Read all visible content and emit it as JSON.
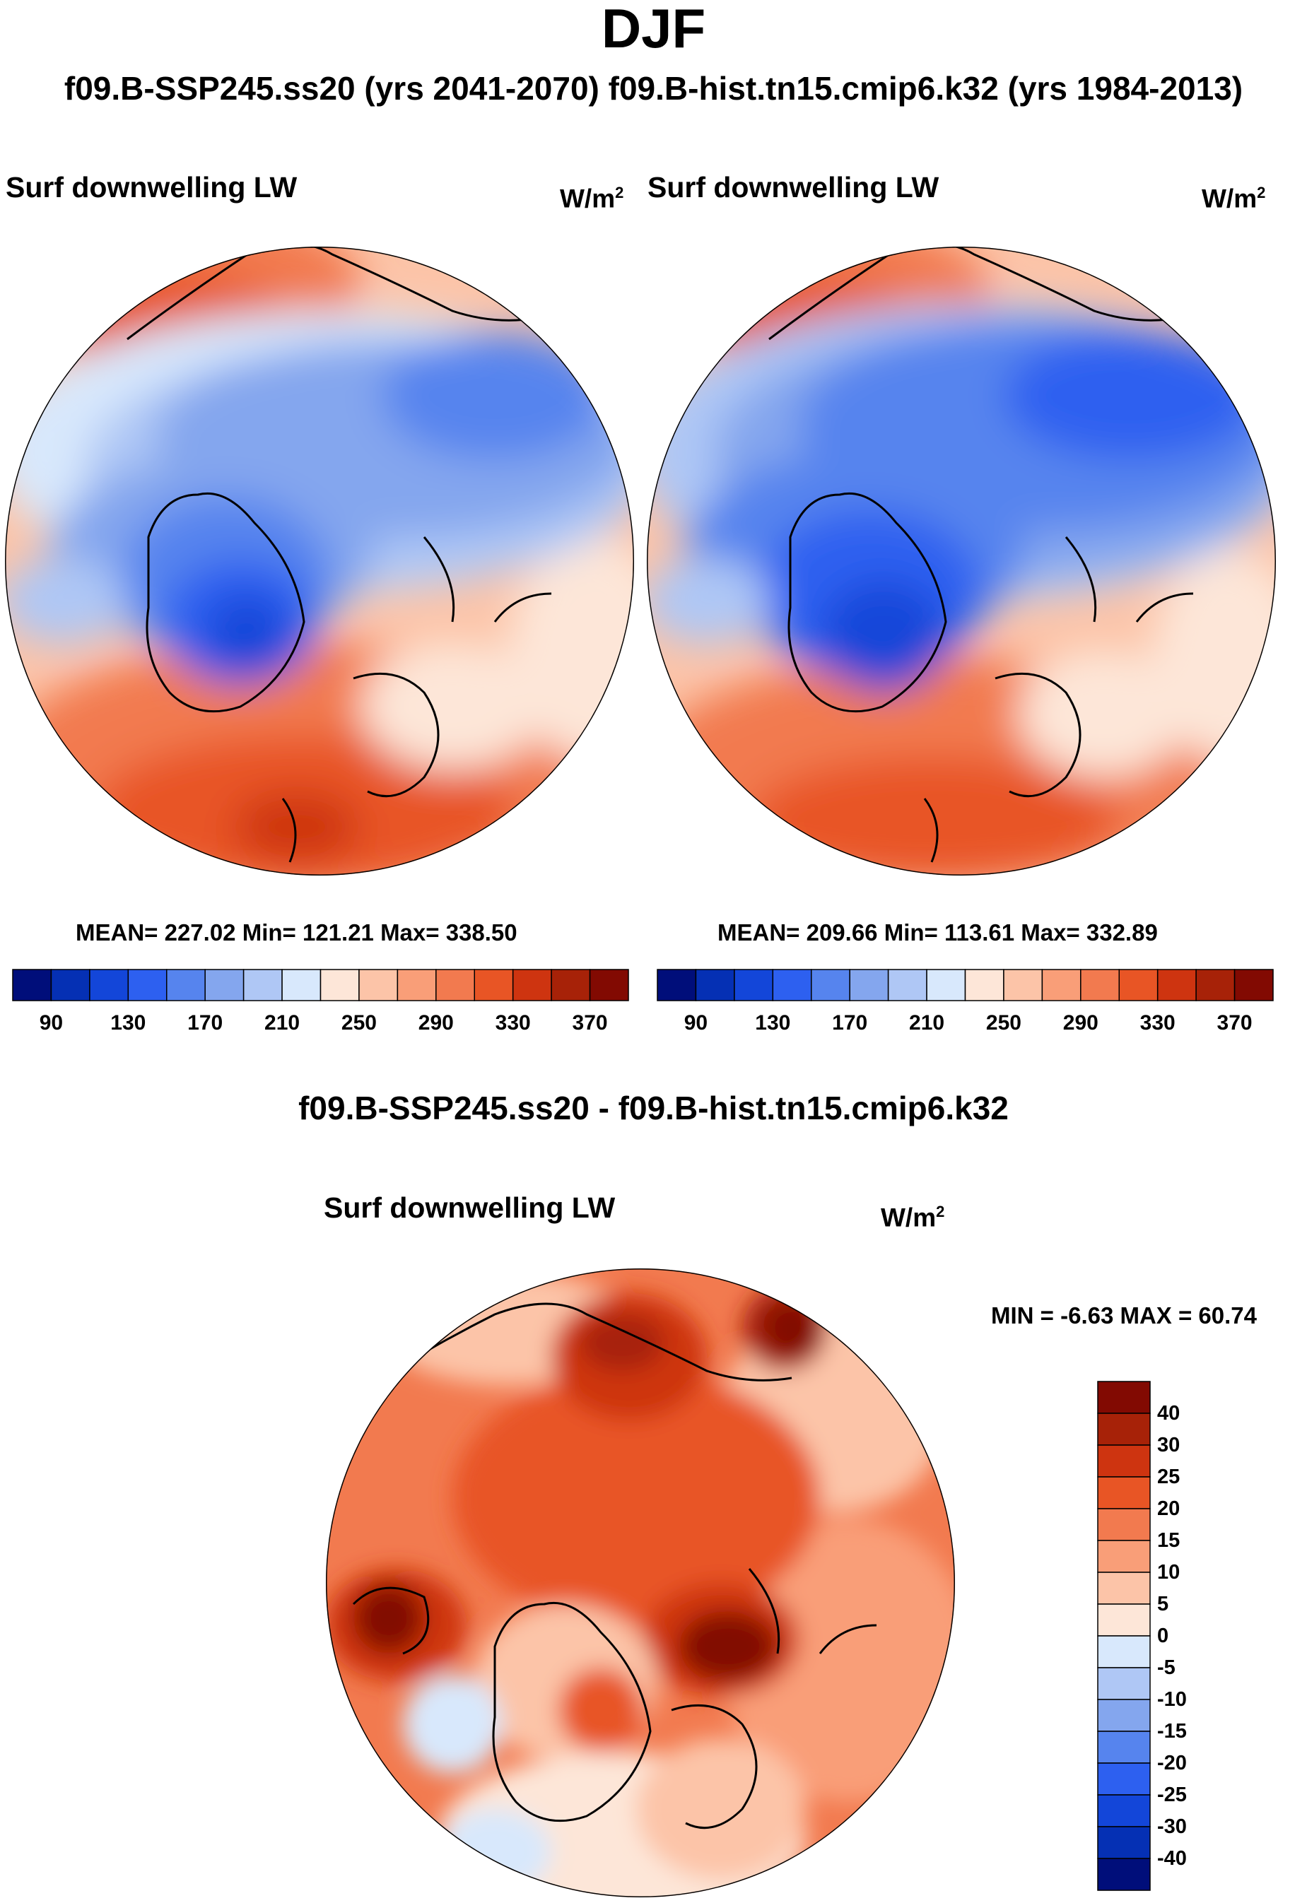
{
  "figure": {
    "title": "DJF",
    "subtitle": "f09.B-SSP245.ss20 (yrs 2041-2070)  f09.B-hist.tn15.cmip6.k32 (yrs 1984-2013)",
    "diff_title": "f09.B-SSP245.ss20 - f09.B-hist.tn15.cmip6.k32"
  },
  "panels": {
    "left": {
      "label": "Surf downwelling LW",
      "units_base": "W/m",
      "units_exp": "2",
      "stats": "MEAN= 227.02  Min= 121.21  Max= 338.50"
    },
    "right": {
      "label": "Surf downwelling LW",
      "units_base": "W/m",
      "units_exp": "2",
      "stats": "MEAN= 209.66  Min= 113.61  Max= 332.89"
    },
    "diff": {
      "label": "Surf downwelling LW",
      "units_base": "W/m",
      "units_exp": "2",
      "stats": "MIN =  -6.63 MAX =  60.74"
    }
  },
  "chart_data": [
    {
      "type": "heatmap",
      "title": "Surf downwelling LW",
      "case": "f09.B-SSP245.ss20 (yrs 2041-2070)",
      "season": "DJF",
      "units": "W/m2",
      "mean": 227.02,
      "min": 121.21,
      "max": 338.5,
      "colorbar_ticks": [
        "90",
        "130",
        "170",
        "210",
        "250",
        "290",
        "330",
        "370"
      ],
      "colorbar_colors": [
        "#000e7a",
        "#0530b4",
        "#1346d9",
        "#2d60f0",
        "#5684ee",
        "#84a6ee",
        "#afc7f5",
        "#d8e8fc",
        "#fde6d8",
        "#fcc4a8",
        "#f99e78",
        "#f27a4f",
        "#e85525",
        "#ce3410",
        "#a72208",
        "#820a02"
      ]
    },
    {
      "type": "heatmap",
      "title": "Surf downwelling LW",
      "case": "f09.B-hist.tn15.cmip6.k32 (yrs 1984-2013)",
      "season": "DJF",
      "units": "W/m2",
      "mean": 209.66,
      "min": 113.61,
      "max": 332.89,
      "colorbar_ticks": [
        "90",
        "130",
        "170",
        "210",
        "250",
        "290",
        "330",
        "370"
      ],
      "colorbar_colors": [
        "#000e7a",
        "#0530b4",
        "#1346d9",
        "#2d60f0",
        "#5684ee",
        "#84a6ee",
        "#afc7f5",
        "#d8e8fc",
        "#fde6d8",
        "#fcc4a8",
        "#f99e78",
        "#f27a4f",
        "#e85525",
        "#ce3410",
        "#a72208",
        "#820a02"
      ]
    },
    {
      "type": "heatmap",
      "title": "Surf downwelling LW",
      "case": "f09.B-SSP245.ss20 - f09.B-hist.tn15.cmip6.k32",
      "season": "DJF",
      "units": "W/m2",
      "min": -6.63,
      "max": 60.74,
      "colorbar_ticks": [
        "40",
        "30",
        "25",
        "20",
        "15",
        "10",
        "5",
        "0",
        "-5",
        "-10",
        "-15",
        "-20",
        "-25",
        "-30",
        "-40"
      ],
      "colorbar_colors": [
        "#820a02",
        "#a72208",
        "#ce3410",
        "#e85525",
        "#f27a4f",
        "#f99e78",
        "#fcc4a8",
        "#fde6d8",
        "#d8e8fc",
        "#afc7f5",
        "#84a6ee",
        "#5684ee",
        "#2d60f0",
        "#1346d9",
        "#0530b4",
        "#000e7a"
      ]
    }
  ]
}
